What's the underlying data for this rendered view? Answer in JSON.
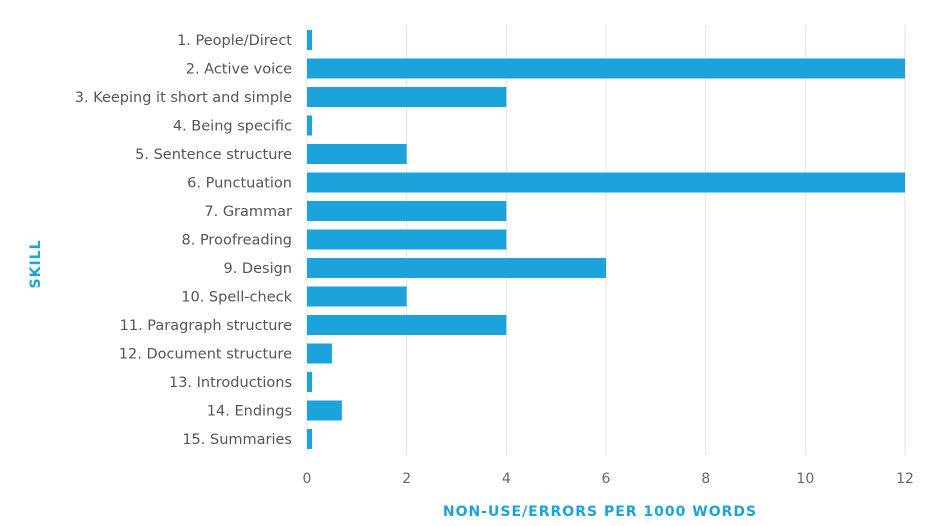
{
  "chart_data": {
    "type": "bar",
    "orientation": "horizontal",
    "categories": [
      "1. People/Direct",
      "2. Active voice",
      "3. Keeping it short and simple",
      "4. Being specific",
      "5. Sentence structure",
      "6. Punctuation",
      "7. Grammar",
      "8. Proofreading",
      "9. Design",
      "10. Spell-check",
      "11. Paragraph structure",
      "12. Document structure",
      "13. Introductions",
      "14. Endings",
      "15. Summaries"
    ],
    "values": [
      0.1,
      12,
      4,
      0.1,
      2,
      12,
      4,
      4,
      6,
      2,
      4,
      0.5,
      0.1,
      0.7,
      0.1
    ],
    "xlabel": "NON-USE/ERRORS PER 1000 WORDS",
    "ylabel": "SKILL",
    "xlim": [
      0,
      12
    ],
    "xticks": [
      "0",
      "2",
      "4",
      "6",
      "8",
      "10",
      "12"
    ],
    "grid": "vertical",
    "bar_color": "#1ca3dc",
    "grid_color": "#e3e3e3"
  }
}
